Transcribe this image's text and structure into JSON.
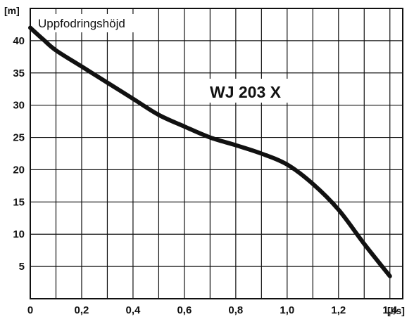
{
  "chart_data": {
    "type": "line",
    "title": "WJ 203 X",
    "ylabel": "Uppfodringshöjd",
    "y_unit": "[m]",
    "x_unit": "[l/s]",
    "xlim": [
      0,
      1.45
    ],
    "ylim": [
      0,
      45
    ],
    "x_ticks": [
      0,
      0.2,
      0.4,
      0.6,
      0.8,
      1.0,
      1.2,
      1.4
    ],
    "x_tick_labels": [
      "0",
      "0,2",
      "0,4",
      "0,6",
      "0,8",
      "1,0",
      "1,2",
      "1,4"
    ],
    "y_ticks": [
      5,
      10,
      15,
      20,
      25,
      30,
      35,
      40
    ],
    "y_tick_labels": [
      "5",
      "10",
      "15",
      "20",
      "25",
      "30",
      "35",
      "40"
    ],
    "grid": true,
    "line_color": "#111111",
    "series": [
      {
        "x": [
          0.0,
          0.05,
          0.1,
          0.2,
          0.3,
          0.4,
          0.5,
          0.6,
          0.7,
          0.8,
          0.9,
          1.0,
          1.1,
          1.2,
          1.3,
          1.4
        ],
        "values": [
          42,
          40.2,
          38.5,
          36,
          33.5,
          31,
          28.5,
          26.7,
          25,
          23.8,
          22.5,
          20.8,
          17.8,
          13.8,
          8.5,
          3.5
        ]
      }
    ]
  }
}
